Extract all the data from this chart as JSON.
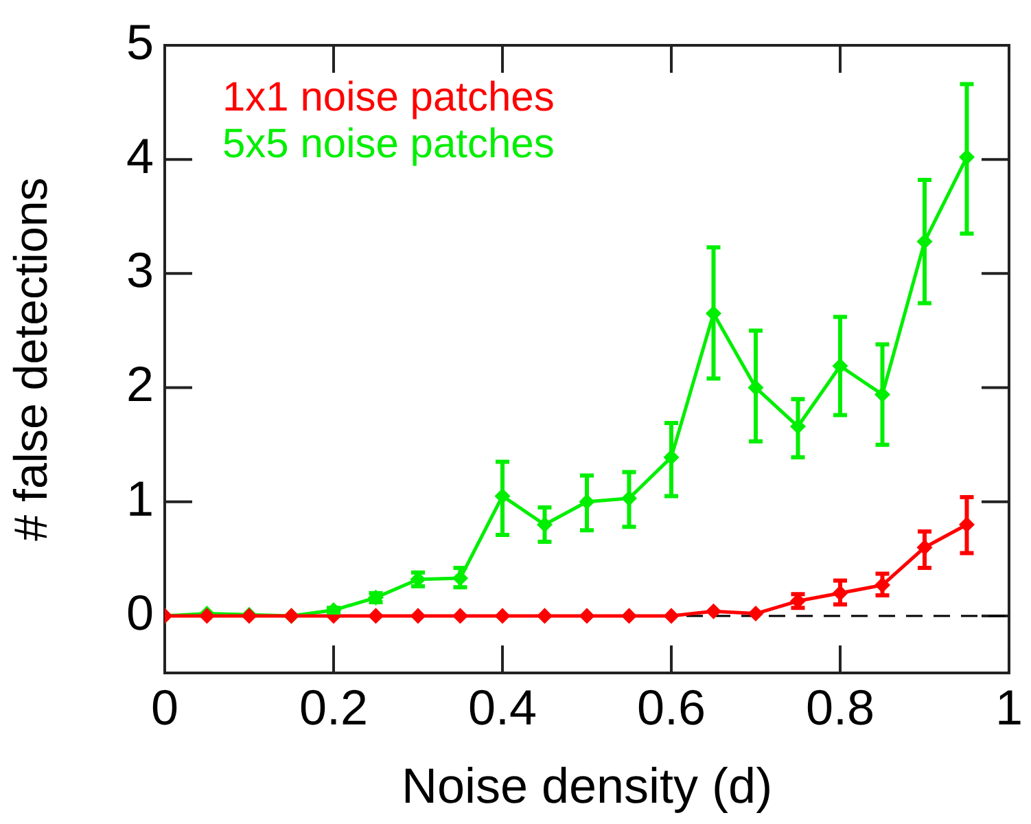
{
  "chart_data": {
    "type": "line",
    "xlabel": "Noise density (d)",
    "ylabel": "# false detections",
    "x": [
      0,
      0.05,
      0.1,
      0.15,
      0.2,
      0.25,
      0.3,
      0.35,
      0.4,
      0.45,
      0.5,
      0.55,
      0.6,
      0.65,
      0.7,
      0.75,
      0.8,
      0.85,
      0.9,
      0.95
    ],
    "series": [
      {
        "name": "1x1 noise patches",
        "color": "#ff0000",
        "values": [
          0,
          0,
          0,
          0,
          0,
          0,
          0,
          0,
          0,
          0,
          0,
          0,
          0,
          0.04,
          0.02,
          0.13,
          0.2,
          0.27,
          0.6,
          0.8
        ],
        "errors": [
          null,
          null,
          null,
          null,
          null,
          null,
          null,
          null,
          null,
          null,
          null,
          null,
          null,
          null,
          null,
          [
            0.07,
            0.19
          ],
          [
            0.1,
            0.31
          ],
          [
            0.18,
            0.37
          ],
          [
            0.42,
            0.74
          ],
          [
            0.55,
            1.04
          ]
        ]
      },
      {
        "name": "5x5 noise patches",
        "color": "#00ee00",
        "values": [
          0,
          0.02,
          0.01,
          0,
          0.05,
          0.16,
          0.32,
          0.33,
          1.05,
          0.8,
          1.0,
          1.03,
          1.39,
          2.65,
          2.0,
          1.66,
          2.19,
          1.94,
          3.28,
          4.02
        ],
        "errors": [
          null,
          null,
          null,
          null,
          [
            0.03,
            0.07
          ],
          [
            0.12,
            0.2
          ],
          [
            0.26,
            0.38
          ],
          [
            0.25,
            0.42
          ],
          [
            0.71,
            1.35
          ],
          [
            0.65,
            0.95
          ],
          [
            0.75,
            1.23
          ],
          [
            0.78,
            1.26
          ],
          [
            1.05,
            1.69
          ],
          [
            2.08,
            3.23
          ],
          [
            1.53,
            2.5
          ],
          [
            1.39,
            1.9
          ],
          [
            1.76,
            2.62
          ],
          [
            1.5,
            2.38
          ],
          [
            2.74,
            3.82
          ],
          [
            3.35,
            4.66
          ]
        ]
      }
    ],
    "xlim": [
      0,
      1
    ],
    "xticks": [
      0,
      0.2,
      0.4,
      0.6,
      0.8,
      1
    ],
    "ylim": [
      -0.5,
      5
    ],
    "yticks": [
      0,
      1,
      2,
      3,
      4,
      5
    ],
    "ref_lines": [
      {
        "axis": "y",
        "value": 0,
        "color": "#000000",
        "line_style": "dashed"
      }
    ],
    "legend": "top left",
    "grid": false,
    "marker": "diamond",
    "line_style": "solid"
  }
}
